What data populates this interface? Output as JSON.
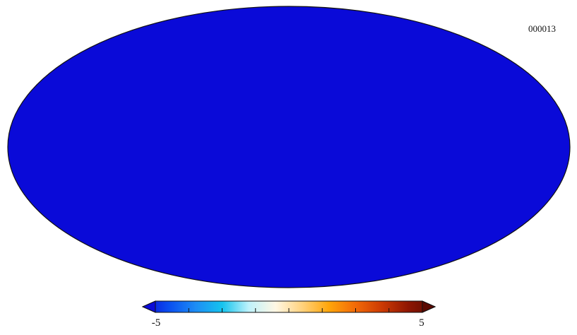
{
  "map_label": "000013",
  "colorbar": {
    "min_label": "-5",
    "max_label": "5",
    "min": -5,
    "max": 5,
    "colors": [
      "#0b0bd8",
      "#0a4ff0",
      "#1d8df5",
      "#15c4ee",
      "#bff2fb",
      "#fff7e4",
      "#ffd27d",
      "#ffa60a",
      "#f26a08",
      "#cc3a03",
      "#8e1602",
      "#5a0a02"
    ]
  },
  "projection": "mollweide"
}
